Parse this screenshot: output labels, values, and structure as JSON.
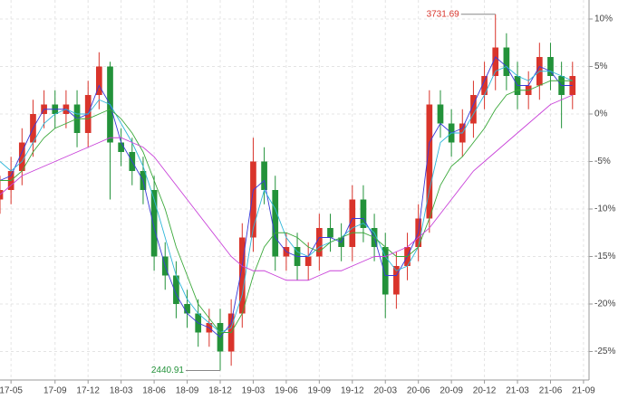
{
  "chart_data": {
    "type": "candlestick",
    "x": [
      0,
      1,
      2,
      3,
      4,
      5,
      6,
      7,
      8,
      9,
      10,
      11,
      12,
      13,
      14,
      15,
      16,
      17,
      18,
      19,
      20,
      21,
      22,
      23,
      24,
      25,
      26,
      27,
      28,
      29,
      30,
      31,
      32,
      33,
      34,
      35,
      36,
      37,
      38,
      39,
      40,
      41,
      42,
      43,
      44,
      45,
      46,
      47,
      48,
      49,
      50,
      51,
      52
    ],
    "open": [
      -9,
      -8,
      -6,
      -3,
      0,
      1,
      0,
      1,
      -2,
      2,
      5,
      -3,
      -4,
      -6,
      -8,
      -15,
      -17,
      -20,
      -21,
      -23,
      -22,
      -25,
      -21,
      -13,
      -5,
      -8,
      -15,
      -14,
      -16,
      -15,
      -12,
      -13,
      -14,
      -9,
      -12,
      -14,
      -19,
      -16,
      -14,
      -11,
      1,
      -1,
      -3,
      -1,
      2,
      4,
      7,
      4,
      2,
      3,
      6,
      4,
      2
    ],
    "high": [
      -6.5,
      -4.5,
      -1.5,
      1.5,
      2.5,
      2.5,
      2.5,
      2.5,
      3.5,
      6.5,
      5.5,
      -1.5,
      -2.5,
      -4.5,
      -6.5,
      -13.5,
      -15.5,
      -18.5,
      -19.5,
      -20.5,
      -20.5,
      -19.5,
      -11.5,
      -2.5,
      -3.5,
      -6.5,
      -12.5,
      -12.5,
      -13.5,
      -10.5,
      -10.5,
      -11.5,
      -7.5,
      -7.5,
      -10.5,
      -12.5,
      -14.5,
      -12.5,
      -9.5,
      2.5,
      2.5,
      0.5,
      0.5,
      3.5,
      5.5,
      10.5,
      8.5,
      5.5,
      4.5,
      7.5,
      7.5,
      5.5,
      5.5
    ],
    "low": [
      -10.5,
      -9.5,
      -7.5,
      -4.5,
      -1.5,
      -1.5,
      -1.5,
      -3.5,
      -3.5,
      0.5,
      -9,
      -5.5,
      -7.5,
      -9.5,
      -16.5,
      -18.5,
      -21.5,
      -22.5,
      -24.5,
      -24.5,
      -27,
      -26.5,
      -22.5,
      -14.5,
      -9.5,
      -16.5,
      -16.5,
      -17.5,
      -17.5,
      -16.5,
      -14.5,
      -15.5,
      -15.5,
      -13.5,
      -15.5,
      -21.5,
      -20.5,
      -17.5,
      -15.5,
      -12.5,
      -2.5,
      -4.5,
      -4.5,
      -2.5,
      0.5,
      2.5,
      2.5,
      0.5,
      0.5,
      1.5,
      2.5,
      -1.5,
      0.5
    ],
    "close": [
      -8,
      -6,
      -3,
      0,
      1,
      0,
      1,
      -2,
      2,
      5,
      -3,
      -4,
      -6,
      -8,
      -15,
      -17,
      -20,
      -21,
      -23,
      -22,
      -25,
      -21,
      -13,
      -5,
      -8,
      -15,
      -14,
      -16,
      -15,
      -12,
      -13,
      -14,
      -9,
      -12,
      -14,
      -19,
      -16,
      -14,
      -11,
      1,
      -1,
      -3,
      -1,
      2,
      4,
      7,
      4,
      2,
      3,
      6,
      4,
      2,
      4
    ],
    "up_color": "#d9342b",
    "down_color": "#23923a",
    "lines": [
      {
        "color": "#3a3ad8",
        "values": [
          -7,
          -6.5,
          -4,
          -1.5,
          0.5,
          0.5,
          0.5,
          -0.5,
          0,
          3,
          1,
          -3,
          -5,
          -7,
          -12,
          -16,
          -19,
          -21,
          -22,
          -22.5,
          -23.5,
          -22,
          -16,
          -8,
          -7,
          -13,
          -14.5,
          -15,
          -15,
          -13,
          -13,
          -13.5,
          -11,
          -11,
          -13,
          -17,
          -17,
          -15,
          -12.5,
          -3,
          -1,
          -2,
          -1.5,
          1,
          3.5,
          6,
          5,
          3,
          3,
          5,
          4.5,
          3,
          3
        ]
      },
      {
        "color": "#2fb6d9",
        "values": [
          -5,
          -6,
          -5,
          -3,
          -1,
          0,
          0.5,
          0,
          0,
          1.5,
          1,
          -1,
          -3,
          -5.5,
          -9,
          -13,
          -17,
          -19.5,
          -21,
          -22,
          -23,
          -22.5,
          -19,
          -12,
          -8,
          -10,
          -13,
          -14.5,
          -15,
          -14,
          -13.5,
          -13,
          -12,
          -11.5,
          -12.5,
          -15,
          -16.5,
          -16,
          -14,
          -8,
          -3,
          -2,
          -2,
          0,
          2,
          4.5,
          5,
          4,
          3.5,
          4.5,
          4.5,
          4,
          3.5
        ]
      },
      {
        "color": "#3aa83a",
        "values": [
          -7,
          -7,
          -6,
          -4,
          -2.5,
          -1.5,
          -1,
          -0.5,
          -0.5,
          0,
          0.5,
          -0.5,
          -2,
          -4,
          -7,
          -10,
          -14,
          -17,
          -20,
          -21.5,
          -23,
          -23,
          -21,
          -17,
          -14,
          -12.5,
          -12.5,
          -13,
          -14,
          -14.5,
          -13.5,
          -13,
          -12.5,
          -12.5,
          -13,
          -14,
          -15,
          -15,
          -14,
          -11,
          -7.5,
          -5.5,
          -4.5,
          -3,
          -1.5,
          0.5,
          2,
          2.5,
          2.5,
          3,
          3.5,
          3.5,
          3.5
        ]
      },
      {
        "color": "#c840d8",
        "values": [
          -8.5,
          -7.5,
          -6.5,
          -6,
          -5.5,
          -5,
          -4.5,
          -4,
          -3.5,
          -3,
          -2.5,
          -2.5,
          -3,
          -3.5,
          -4.5,
          -6,
          -7.5,
          -9,
          -10.5,
          -12,
          -13.5,
          -15,
          -16,
          -16.5,
          -16.5,
          -17,
          -17.5,
          -17.5,
          -17.5,
          -17,
          -16.5,
          -16.5,
          -16,
          -15.5,
          -15,
          -15,
          -14.5,
          -14,
          -13,
          -12,
          -10.5,
          -9,
          -7.5,
          -6,
          -5,
          -4,
          -3,
          -2,
          -1,
          0,
          1,
          1.5,
          2
        ]
      }
    ],
    "annotations": [
      {
        "label": "3731.69",
        "x": 45,
        "y": 10.5,
        "color": "#d9342b"
      },
      {
        "label": "2440.91",
        "x": 20,
        "y": -27,
        "color": "#23923a"
      }
    ],
    "xlim": [
      0,
      53.5
    ],
    "ylim": [
      -28,
      12
    ],
    "xticks": [
      {
        "value": 1,
        "label": "17-05"
      },
      {
        "value": 5,
        "label": "17-09"
      },
      {
        "value": 8,
        "label": "17-12"
      },
      {
        "value": 11,
        "label": "18-03"
      },
      {
        "value": 14,
        "label": "18-06"
      },
      {
        "value": 17,
        "label": "18-09"
      },
      {
        "value": 20,
        "label": "18-12"
      },
      {
        "value": 23,
        "label": "19-03"
      },
      {
        "value": 26,
        "label": "19-06"
      },
      {
        "value": 29,
        "label": "19-09"
      },
      {
        "value": 32,
        "label": "19-12"
      },
      {
        "value": 35,
        "label": "20-03"
      },
      {
        "value": 38,
        "label": "20-06"
      },
      {
        "value": 41,
        "label": "20-09"
      },
      {
        "value": 44,
        "label": "20-12"
      },
      {
        "value": 47,
        "label": "21-03"
      },
      {
        "value": 50,
        "label": "21-06"
      },
      {
        "value": 53,
        "label": "21-09"
      }
    ],
    "yticks": [
      {
        "value": 10,
        "label": "10%"
      },
      {
        "value": 5,
        "label": "5%"
      },
      {
        "value": 0,
        "label": "0%"
      },
      {
        "value": -5,
        "label": "-5%"
      },
      {
        "value": -10,
        "label": "-10%"
      },
      {
        "value": -15,
        "label": "-15%"
      },
      {
        "value": -20,
        "label": "-20%"
      },
      {
        "value": -25,
        "label": "-25%"
      }
    ],
    "grid": true
  }
}
